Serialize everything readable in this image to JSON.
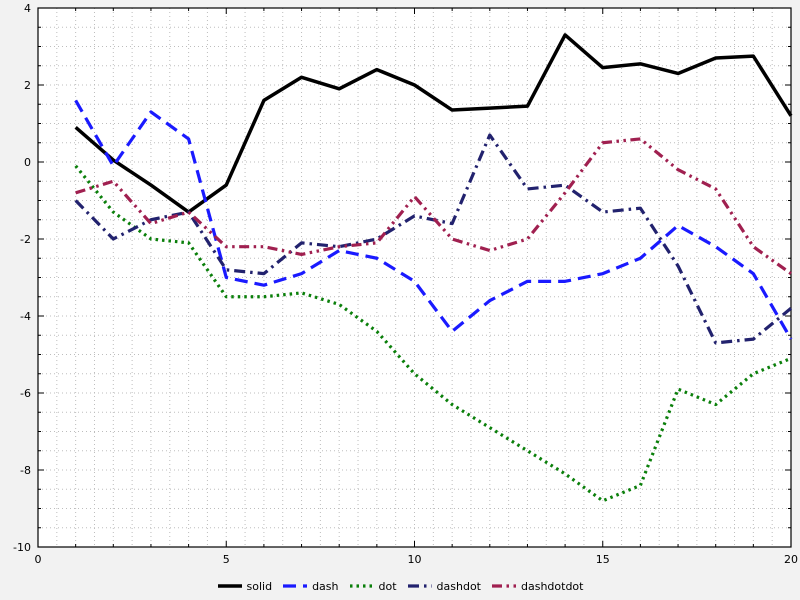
{
  "chart_data": {
    "type": "line",
    "title": "",
    "xlabel": "",
    "ylabel": "",
    "xlim": [
      0,
      20
    ],
    "ylim": [
      -10,
      4
    ],
    "x_ticks": [
      0,
      5,
      10,
      15,
      20
    ],
    "y_ticks": [
      -10,
      -8,
      -6,
      -4,
      -2,
      0,
      2,
      4
    ],
    "grid": true,
    "grid_step_x": 0.5,
    "grid_step_y": 0.5,
    "legend_position": "bottom",
    "x": [
      1,
      2,
      3,
      4,
      5,
      6,
      7,
      8,
      9,
      10,
      11,
      12,
      13,
      14,
      15,
      16,
      17,
      18,
      19,
      20
    ],
    "series": [
      {
        "name": "solid",
        "color": "#000000",
        "dash": "solid",
        "width": 3.5,
        "values": [
          0.9,
          0.05,
          -0.6,
          -1.3,
          -0.6,
          1.6,
          2.2,
          1.9,
          2.4,
          2.0,
          1.35,
          1.4,
          1.45,
          3.3,
          2.45,
          2.55,
          2.3,
          2.7,
          2.75,
          1.2
        ]
      },
      {
        "name": "dash",
        "color": "#1a1aff",
        "dash": "dash",
        "width": 3.2,
        "values": [
          1.6,
          -0.1,
          1.3,
          0.6,
          -3.0,
          -3.2,
          -2.9,
          -2.3,
          -2.5,
          -3.1,
          -4.4,
          -3.6,
          -3.1,
          -3.1,
          -2.9,
          -2.5,
          -1.65,
          -2.2,
          -2.9,
          -4.6
        ]
      },
      {
        "name": "dot",
        "color": "#0a7f0a",
        "dash": "dot",
        "width": 3.2,
        "values": [
          -0.1,
          -1.3,
          -2.0,
          -2.1,
          -3.5,
          -3.5,
          -3.4,
          -3.7,
          -4.4,
          -5.5,
          -6.3,
          -6.9,
          -7.5,
          -8.1,
          -8.8,
          -8.4,
          -5.9,
          -6.3,
          -5.5,
          -5.1
        ]
      },
      {
        "name": "dashdot",
        "color": "#22226e",
        "dash": "dashdot",
        "width": 3.2,
        "values": [
          -1.0,
          -2.0,
          -1.5,
          -1.3,
          -2.8,
          -2.9,
          -2.1,
          -2.2,
          -2.0,
          -1.4,
          -1.6,
          0.7,
          -0.7,
          -0.6,
          -1.3,
          -1.2,
          -2.7,
          -4.7,
          -4.6,
          -3.8
        ]
      },
      {
        "name": "dashdotdot",
        "color": "#a02050",
        "dash": "dashdotdot",
        "width": 3.2,
        "values": [
          -0.8,
          -0.5,
          -1.6,
          -1.3,
          -2.2,
          -2.2,
          -2.4,
          -2.2,
          -2.1,
          -0.9,
          -2.0,
          -2.3,
          -2.0,
          -0.8,
          0.5,
          0.6,
          -0.2,
          -0.7,
          -2.2,
          -2.9
        ]
      }
    ]
  },
  "colors": {
    "background": "#f2f2f2",
    "plot_background": "#ffffff",
    "grid": "#bdbdbd",
    "axis": "#000000"
  }
}
